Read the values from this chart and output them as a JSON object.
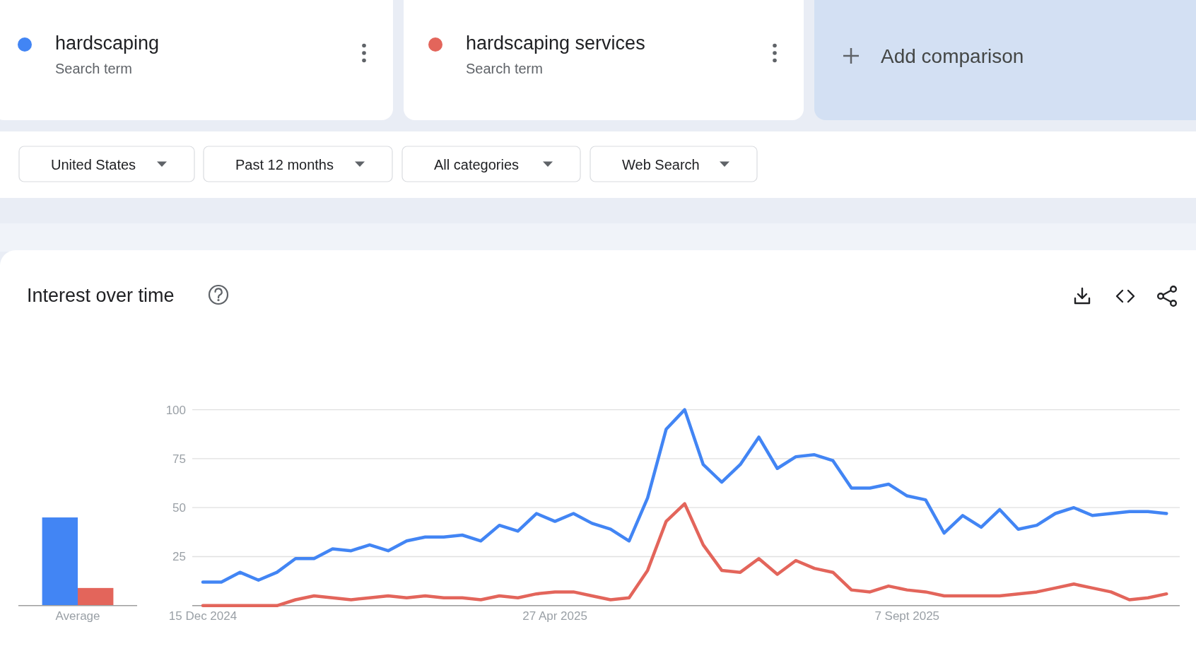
{
  "chart_data": [
    {
      "type": "bar",
      "title": "Interest over time",
      "categories": [
        "Average"
      ],
      "ylim": [
        0,
        100
      ],
      "tick_labels": "x",
      "series": [
        {
          "color": "#4285f4",
          "values": [
            45
          ]
        },
        {
          "color": "#e3655b",
          "values": [
            9
          ]
        }
      ]
    },
    {
      "type": "line",
      "legend": "top",
      "grid": "y",
      "annotations": [
        "Search term",
        "Search term",
        "Add comparison",
        "United States",
        "Past 12 months",
        "All categories",
        "Web Search"
      ],
      "x": [
        "2024-12-15",
        "2024-12-22",
        "2024-12-29",
        "2025-01-05",
        "2025-01-12",
        "2025-01-19",
        "2025-01-26",
        "2025-02-02",
        "2025-02-09",
        "2025-02-16",
        "2025-02-23",
        "2025-03-02",
        "2025-03-09",
        "2025-03-16",
        "2025-03-23",
        "2025-03-30",
        "2025-04-06",
        "2025-04-13",
        "2025-04-20",
        "2025-04-27",
        "2025-05-04",
        "2025-05-11",
        "2025-05-18",
        "2025-05-25",
        "2025-06-01",
        "2025-06-08",
        "2025-06-15",
        "2025-06-22",
        "2025-06-29",
        "2025-07-06",
        "2025-07-13",
        "2025-07-20",
        "2025-07-27",
        "2025-08-03",
        "2025-08-10",
        "2025-08-17",
        "2025-08-24",
        "2025-08-31",
        "2025-09-07",
        "2025-09-14",
        "2025-09-21",
        "2025-09-28",
        "2025-10-05",
        "2025-10-12",
        "2025-10-19",
        "2025-10-26",
        "2025-11-02",
        "2025-11-09",
        "2025-11-16",
        "2025-11-23",
        "2025-11-30",
        "2025-12-07",
        "2025-12-14"
      ],
      "xlim": [
        "2024-12-11",
        "2025-12-19"
      ],
      "xticks": [
        {
          "value": "2024-12-15",
          "label": "15 Dec 2024"
        },
        {
          "value": "2025-04-27",
          "label": "27 Apr 2025"
        },
        {
          "value": "2025-09-07",
          "label": "7 Sept 2025"
        }
      ],
      "ylim": [
        0,
        100
      ],
      "yticks": [
        {
          "value": 0,
          "label": null
        },
        25,
        50,
        75,
        100
      ],
      "series": [
        {
          "name": "hardscaping",
          "color": "#4285f4",
          "values": [
            12,
            12,
            17,
            13,
            17,
            24,
            24,
            29,
            28,
            31,
            28,
            33,
            35,
            35,
            36,
            33,
            41,
            38,
            47,
            43,
            47,
            42,
            39,
            33,
            55,
            90,
            100,
            72,
            63,
            72,
            86,
            70,
            76,
            77,
            74,
            60,
            60,
            62,
            56,
            54,
            37,
            46,
            40,
            49,
            39,
            41,
            47,
            50,
            46,
            47,
            48,
            48,
            47
          ]
        },
        {
          "name": "hardscaping services",
          "color": "#e3655b",
          "values": [
            0,
            0,
            0,
            0,
            0,
            3,
            5,
            4,
            3,
            4,
            5,
            4,
            5,
            4,
            4,
            3,
            5,
            4,
            6,
            7,
            7,
            5,
            3,
            4,
            18,
            43,
            52,
            31,
            18,
            17,
            24,
            16,
            23,
            19,
            17,
            8,
            7,
            10,
            8,
            7,
            5,
            5,
            5,
            5,
            6,
            7,
            9,
            11,
            9,
            7,
            3,
            4,
            6
          ]
        }
      ]
    }
  ]
}
